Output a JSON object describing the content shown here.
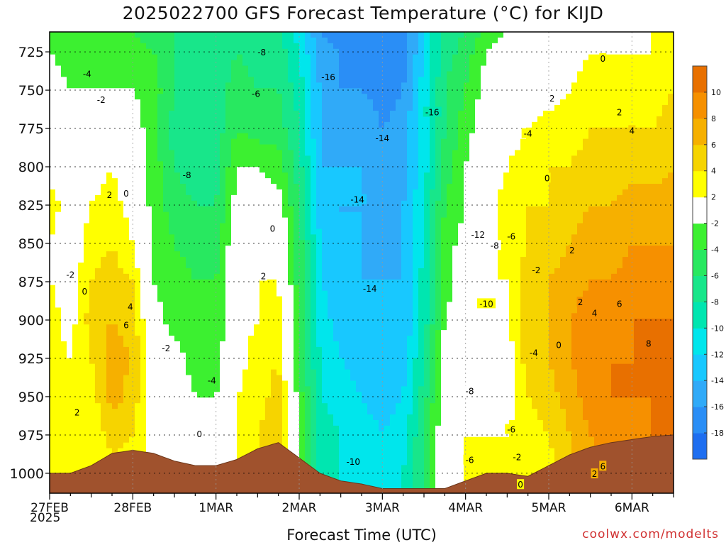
{
  "chart_data": {
    "type": "heatmap",
    "title": "2025022700 GFS Forecast Temperature (°C) for KIJD",
    "xlabel": "Forecast Time (UTC)",
    "ylabel": "",
    "x_tick_labels": [
      "27FEB",
      "28FEB",
      "1MAR",
      "2MAR",
      "3MAR",
      "4MAR",
      "5MAR",
      "6MAR"
    ],
    "x_sublabel": "2025",
    "x_day_range": [
      0,
      7.5
    ],
    "y_tick_labels": [
      "725",
      "750",
      "775",
      "800",
      "825",
      "850",
      "875",
      "900",
      "925",
      "950",
      "975",
      "1000"
    ],
    "y_range_hpa": [
      1013,
      712
    ],
    "grid": true,
    "colorbar": {
      "placement": "right",
      "levels": [
        -20,
        -18,
        -16,
        -14,
        -12,
        -10,
        -8,
        -6,
        -4,
        -2,
        2,
        4,
        6,
        8,
        10,
        12
      ],
      "tick_labels": [
        "-18",
        "-16",
        "-14",
        "-12",
        "-10",
        "-8",
        "-6",
        "-4",
        "-2",
        "2",
        "4",
        "6",
        "8",
        "10"
      ],
      "colors": [
        "#1e6ef0",
        "#2a8ef6",
        "#30aaf8",
        "#18c8ff",
        "#00e6ec",
        "#00e6b0",
        "#18e68a",
        "#28e860",
        "#3cf030",
        "#ffffff",
        "#ffff00",
        "#f6d400",
        "#f6b000",
        "#f69000",
        "#e87000"
      ]
    },
    "columns": [
      {
        "day": 0.0,
        "temps": [
          -4,
          -2,
          -1,
          0,
          1,
          3,
          2,
          2,
          3,
          3,
          3,
          3,
          3
        ],
        "sfc": 1000
      },
      {
        "day": 0.25,
        "temps": [
          -4,
          -3,
          -2,
          -1,
          0,
          1,
          0,
          1,
          1,
          2,
          3,
          3,
          3
        ],
        "sfc": 1000
      },
      {
        "day": 0.5,
        "temps": [
          -4,
          -3,
          -2,
          -1,
          1,
          2,
          3,
          4,
          5,
          4,
          3,
          2,
          2
        ],
        "sfc": 995
      },
      {
        "day": 0.75,
        "temps": [
          -4,
          -3,
          -2,
          0,
          2,
          3,
          4,
          5,
          6,
          7,
          7,
          5,
          3
        ],
        "sfc": 987
      },
      {
        "day": 1.0,
        "temps": [
          -4,
          -3,
          -2,
          -1,
          0,
          1,
          2,
          4,
          5,
          6,
          5,
          4,
          3
        ],
        "sfc": 985
      },
      {
        "day": 1.25,
        "temps": [
          -5,
          -4,
          -3,
          -3,
          -3,
          -3,
          -2,
          -2,
          -1,
          0,
          1,
          1,
          1
        ],
        "sfc": 987
      },
      {
        "day": 1.5,
        "temps": [
          -6,
          -6,
          -6,
          -7,
          -6,
          -5,
          -4,
          -3,
          -3,
          -1,
          0,
          1,
          2
        ],
        "sfc": 992
      },
      {
        "day": 1.75,
        "temps": [
          -7,
          -7,
          -7,
          -8,
          -7,
          -6,
          -5,
          -4,
          -4,
          -3,
          -2,
          -1,
          0
        ],
        "sfc": 995
      },
      {
        "day": 2.0,
        "temps": [
          -8,
          -8,
          -7,
          -7,
          -7,
          -6,
          -5,
          -4,
          -4,
          -3,
          -2,
          -1,
          0
        ],
        "sfc": 995
      },
      {
        "day": 2.25,
        "temps": [
          -7,
          -6,
          -5,
          -4,
          -2,
          -1,
          0,
          0,
          1,
          1,
          2,
          2,
          2
        ],
        "sfc": 991
      },
      {
        "day": 2.5,
        "temps": [
          -8,
          -7,
          -6,
          -5,
          -2,
          0,
          2,
          2,
          2,
          3,
          3,
          4,
          4
        ],
        "sfc": 984
      },
      {
        "day": 2.75,
        "temps": [
          -8,
          -7,
          -6,
          -5,
          -3,
          -1,
          1,
          2,
          3,
          4,
          5,
          6,
          6
        ],
        "sfc": 980
      },
      {
        "day": 3.0,
        "temps": [
          -11,
          -10,
          -9,
          -8,
          -7,
          -6,
          -5,
          -5,
          -4,
          -4,
          -3,
          -2,
          -2
        ],
        "sfc": 990
      },
      {
        "day": 3.25,
        "temps": [
          -16,
          -15,
          -14,
          -14,
          -14,
          -13,
          -12,
          -12,
          -11,
          -10,
          -10,
          -9,
          -9
        ],
        "sfc": 1000
      },
      {
        "day": 3.5,
        "temps": [
          -17,
          -16,
          -16,
          -15,
          -14,
          -14,
          -14,
          -13,
          -13,
          -12,
          -11,
          -10,
          -10
        ],
        "sfc": 1005
      },
      {
        "day": 3.75,
        "temps": [
          -18,
          -17,
          -16,
          -14,
          -14,
          -14,
          -14,
          -14,
          -13,
          -13,
          -12,
          -11,
          -11
        ],
        "sfc": 1007
      },
      {
        "day": 4.0,
        "temps": [
          -18,
          -18,
          -17,
          -16,
          -15,
          -15,
          -15,
          -14,
          -14,
          -14,
          -13,
          -12,
          -11
        ],
        "sfc": 1010
      },
      {
        "day": 4.25,
        "temps": [
          -17,
          -17,
          -16,
          -15,
          -15,
          -14,
          -14,
          -14,
          -14,
          -13,
          -12,
          -11,
          -10
        ],
        "sfc": 1010
      },
      {
        "day": 4.5,
        "temps": [
          -12,
          -12,
          -11,
          -11,
          -11,
          -10,
          -10,
          -9,
          -9,
          -8,
          -7,
          -6,
          -6
        ],
        "sfc": 1010
      },
      {
        "day": 4.75,
        "temps": [
          -7,
          -7,
          -6,
          -6,
          -5,
          -4,
          -3,
          -3,
          -2,
          -1,
          0,
          0,
          1
        ],
        "sfc": 1010
      },
      {
        "day": 5.0,
        "temps": [
          -6,
          -5,
          -4,
          -3,
          -2,
          -2,
          -1,
          -1,
          0,
          0,
          1,
          2,
          2
        ],
        "sfc": 1005
      },
      {
        "day": 5.25,
        "temps": [
          -3,
          -2,
          -1,
          0,
          0,
          1,
          1,
          2,
          2,
          1,
          1,
          2,
          2
        ],
        "sfc": 1000
      },
      {
        "day": 5.5,
        "temps": [
          -2,
          -1,
          0,
          1,
          2,
          3,
          3,
          2,
          1,
          1,
          1,
          2,
          3
        ],
        "sfc": 1000
      },
      {
        "day": 5.75,
        "temps": [
          -2,
          -1,
          0,
          2,
          3,
          4,
          4,
          5,
          6,
          5,
          4,
          3,
          2
        ],
        "sfc": 1002
      },
      {
        "day": 6.0,
        "temps": [
          -1,
          0,
          1,
          3,
          4,
          4,
          5,
          6,
          6,
          6,
          5,
          4,
          3
        ],
        "sfc": 995
      },
      {
        "day": 6.25,
        "temps": [
          0,
          1,
          2,
          3,
          4,
          5,
          6,
          7,
          8,
          8,
          7,
          6,
          5
        ],
        "sfc": 988
      },
      {
        "day": 6.5,
        "temps": [
          0,
          2,
          3,
          4,
          5,
          6,
          7,
          8,
          9,
          9,
          9,
          8,
          7
        ],
        "sfc": 983
      },
      {
        "day": 6.75,
        "temps": [
          1,
          2,
          3,
          4,
          5,
          6,
          7,
          8,
          9,
          10,
          10,
          9,
          8
        ],
        "sfc": 980
      },
      {
        "day": 7.0,
        "temps": [
          1,
          2,
          3,
          4,
          5,
          7,
          8,
          9,
          10,
          10,
          10,
          9,
          9
        ],
        "sfc": 978
      },
      {
        "day": 7.25,
        "temps": [
          2,
          2,
          3,
          4,
          5,
          7,
          8,
          9,
          10,
          11,
          10,
          10,
          9
        ],
        "sfc": 976
      },
      {
        "day": 7.5,
        "temps": [
          2,
          3,
          4,
          5,
          6,
          7,
          8,
          9,
          10,
          11,
          11,
          10,
          10
        ],
        "sfc": 975
      }
    ],
    "level_hpa": [
      712,
      725,
      750,
      775,
      800,
      825,
      850,
      875,
      900,
      925,
      950,
      975,
      1000
    ],
    "contour_labels": [
      {
        "text": "-4",
        "day": 0.45,
        "p": 740
      },
      {
        "text": "-2",
        "day": 0.62,
        "p": 757
      },
      {
        "text": "2",
        "day": 0.72,
        "p": 819
      },
      {
        "text": "0",
        "day": 0.92,
        "p": 818
      },
      {
        "text": "-2",
        "day": 0.25,
        "p": 871
      },
      {
        "text": "0",
        "day": 0.42,
        "p": 882
      },
      {
        "text": "4",
        "day": 0.97,
        "p": 892
      },
      {
        "text": "6",
        "day": 0.92,
        "p": 904
      },
      {
        "text": "2",
        "day": 0.33,
        "p": 961
      },
      {
        "text": "-8",
        "day": 2.55,
        "p": 726
      },
      {
        "text": "-6",
        "day": 2.48,
        "p": 753
      },
      {
        "text": "-8",
        "day": 1.65,
        "p": 806
      },
      {
        "text": "-2",
        "day": 1.4,
        "p": 919
      },
      {
        "text": "-4",
        "day": 1.95,
        "p": 940
      },
      {
        "text": "0",
        "day": 1.8,
        "p": 975
      },
      {
        "text": "0",
        "day": 2.68,
        "p": 841
      },
      {
        "text": "2",
        "day": 2.57,
        "p": 872
      },
      {
        "text": "-16",
        "day": 3.35,
        "p": 742
      },
      {
        "text": "-16",
        "day": 4.6,
        "p": 765
      },
      {
        "text": "-14",
        "day": 4.0,
        "p": 782
      },
      {
        "text": "-14",
        "day": 3.7,
        "p": 822
      },
      {
        "text": "-14",
        "day": 3.85,
        "p": 880
      },
      {
        "text": "-12",
        "day": 5.15,
        "p": 845
      },
      {
        "text": "-8",
        "day": 5.35,
        "p": 852
      },
      {
        "text": "-6",
        "day": 5.55,
        "p": 846
      },
      {
        "text": "-10",
        "day": 5.25,
        "p": 890
      },
      {
        "text": "-8",
        "day": 5.05,
        "p": 947
      },
      {
        "text": "-6",
        "day": 5.55,
        "p": 972
      },
      {
        "text": "-6",
        "day": 5.05,
        "p": 992
      },
      {
        "text": "-10",
        "day": 3.65,
        "p": 993
      },
      {
        "text": "-4",
        "day": 5.75,
        "p": 779
      },
      {
        "text": "-2",
        "day": 5.85,
        "p": 868
      },
      {
        "text": "-4",
        "day": 5.82,
        "p": 922
      },
      {
        "text": "2",
        "day": 6.04,
        "p": 756
      },
      {
        "text": "0",
        "day": 5.98,
        "p": 808
      },
      {
        "text": "-2",
        "day": 5.62,
        "p": 990
      },
      {
        "text": "0",
        "day": 5.66,
        "p": 1008
      },
      {
        "text": "0",
        "day": 6.65,
        "p": 730
      },
      {
        "text": "0",
        "day": 6.12,
        "p": 917
      },
      {
        "text": "2",
        "day": 6.85,
        "p": 765
      },
      {
        "text": "4",
        "day": 7.0,
        "p": 777
      },
      {
        "text": "2",
        "day": 6.28,
        "p": 855
      },
      {
        "text": "2",
        "day": 6.38,
        "p": 889
      },
      {
        "text": "4",
        "day": 6.55,
        "p": 896
      },
      {
        "text": "6",
        "day": 6.85,
        "p": 890
      },
      {
        "text": "8",
        "day": 7.2,
        "p": 916
      },
      {
        "text": "2",
        "day": 6.55,
        "p": 1001
      },
      {
        "text": "6",
        "day": 6.65,
        "p": 996
      }
    ]
  },
  "footer": {
    "credit": "coolwx.com/modelts"
  }
}
